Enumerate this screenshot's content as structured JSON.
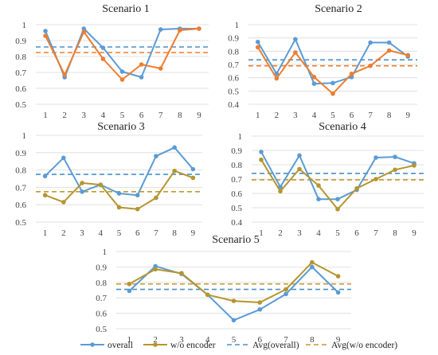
{
  "colors": {
    "overall": "#5b9bd5",
    "wo_orange": "#ed7d31",
    "wo_olive": "#b5952f",
    "avg_overall": "#4a90c8",
    "avg_wo_orange": "#ed7d31",
    "avg_wo_olive": "#c49a2b"
  },
  "legend": {
    "overall": "overall",
    "wo": "w/o encoder",
    "avg_overall": "Avg(overall)",
    "avg_wo": "Avg(w/o encoder)"
  },
  "chart_data": [
    {
      "type": "line",
      "title": "Scenario 1",
      "x": [
        1,
        2,
        3,
        4,
        5,
        6,
        7,
        8,
        9
      ],
      "ylim": [
        0.5,
        1.0
      ],
      "yticks": [
        0.5,
        0.6,
        0.7,
        0.8,
        0.9,
        1
      ],
      "wo_color": "wo_orange",
      "series": [
        {
          "name": "overall",
          "values": [
            0.96,
            0.67,
            0.975,
            0.855,
            0.705,
            0.67,
            0.97,
            0.975,
            0.975
          ]
        },
        {
          "name": "w/o encoder",
          "values": [
            0.93,
            0.685,
            0.955,
            0.785,
            0.655,
            0.75,
            0.725,
            0.965,
            0.975
          ]
        }
      ],
      "averages": {
        "Avg(overall)": 0.86,
        "Avg(w/o encoder)": 0.825
      }
    },
    {
      "type": "line",
      "title": "Scenario  2",
      "x": [
        1,
        2,
        3,
        4,
        5,
        6,
        7,
        8,
        9
      ],
      "ylim": [
        0.4,
        1.0
      ],
      "yticks": [
        0.4,
        0.5,
        0.6,
        0.7,
        0.8,
        0.9,
        1
      ],
      "wo_color": "wo_orange",
      "series": [
        {
          "name": "overall",
          "values": [
            0.87,
            0.63,
            0.89,
            0.555,
            0.56,
            0.605,
            0.865,
            0.865,
            0.76
          ]
        },
        {
          "name": "w/o encoder",
          "values": [
            0.83,
            0.595,
            0.79,
            0.605,
            0.48,
            0.63,
            0.69,
            0.805,
            0.77
          ]
        }
      ],
      "averages": {
        "Avg(overall)": 0.735,
        "Avg(w/o encoder)": 0.69
      }
    },
    {
      "type": "line",
      "title": "Scenario 3",
      "x": [
        1,
        2,
        3,
        4,
        5,
        6,
        7,
        8,
        9
      ],
      "ylim": [
        0.5,
        1.0
      ],
      "yticks": [
        0.5,
        0.6,
        0.7,
        0.8,
        0.9,
        1
      ],
      "wo_color": "wo_olive",
      "series": [
        {
          "name": "overall",
          "values": [
            0.765,
            0.87,
            0.675,
            0.715,
            0.665,
            0.655,
            0.88,
            0.93,
            0.805
          ]
        },
        {
          "name": "w/o encoder",
          "values": [
            0.655,
            0.615,
            0.725,
            0.715,
            0.585,
            0.575,
            0.64,
            0.795,
            0.755
          ]
        }
      ],
      "averages": {
        "Avg(overall)": 0.775,
        "Avg(w/o encoder)": 0.675
      }
    },
    {
      "type": "line",
      "title": "Scenario 4",
      "x": [
        1,
        2,
        3,
        4,
        5,
        6,
        7,
        8,
        9
      ],
      "ylim": [
        0.4,
        1.0
      ],
      "yticks": [
        0.4,
        0.5,
        0.6,
        0.7,
        0.8,
        0.9,
        1
      ],
      "wo_color": "wo_olive",
      "series": [
        {
          "name": "overall",
          "values": [
            0.89,
            0.645,
            0.865,
            0.56,
            0.56,
            0.625,
            0.85,
            0.855,
            0.81
          ]
        },
        {
          "name": "w/o encoder",
          "values": [
            0.835,
            0.615,
            0.77,
            0.655,
            0.49,
            0.635,
            0.7,
            0.765,
            0.795
          ]
        }
      ],
      "averages": {
        "Avg(overall)": 0.74,
        "Avg(w/o encoder)": 0.695
      }
    },
    {
      "type": "line",
      "title": "Scenario 5",
      "x": [
        1,
        2,
        3,
        4,
        5,
        6,
        7,
        8,
        9
      ],
      "ylim": [
        0.5,
        1.0
      ],
      "yticks": [
        0.5,
        0.6,
        0.7,
        0.8,
        0.9,
        1
      ],
      "wo_color": "wo_olive",
      "series": [
        {
          "name": "overall",
          "values": [
            0.745,
            0.905,
            0.855,
            0.72,
            0.555,
            0.625,
            0.725,
            0.9,
            0.735
          ]
        },
        {
          "name": "w/o encoder",
          "values": [
            0.79,
            0.885,
            0.86,
            0.72,
            0.68,
            0.67,
            0.755,
            0.93,
            0.84
          ]
        }
      ],
      "averages": {
        "Avg(overall)": 0.755,
        "Avg(w/o encoder)": 0.79
      }
    }
  ]
}
